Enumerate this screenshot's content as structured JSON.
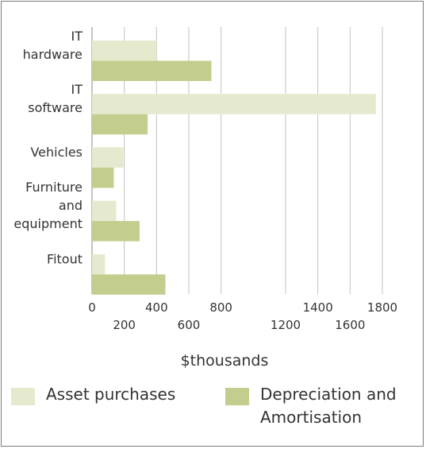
{
  "chart_data": {
    "type": "bar",
    "orientation": "horizontal",
    "categories": [
      [
        "IT",
        "hardware"
      ],
      [
        "IT",
        "software"
      ],
      [
        "Vehicles"
      ],
      [
        "Furniture",
        "and",
        "equipment"
      ],
      [
        "Fitout"
      ]
    ],
    "series": [
      {
        "name": "Asset purchases",
        "color": "#e5eacf",
        "values": [
          400,
          1760,
          195,
          150,
          80
        ]
      },
      {
        "name": "Depreciation and Amortisation",
        "color": "#c3ce8e",
        "values": [
          740,
          345,
          135,
          295,
          455
        ]
      }
    ],
    "xlabel": "$thousands",
    "xlim": [
      0,
      1800
    ],
    "xticks": [
      0,
      200,
      400,
      600,
      800,
      1200,
      1400,
      1600,
      1800
    ],
    "xtick_labels": [
      "0",
      "200",
      "400",
      "600",
      "800",
      "1200",
      "1400",
      "1600",
      "1800"
    ],
    "grid": true,
    "legend": {
      "position": "bottom",
      "items": [
        {
          "label_lines": [
            "Asset purchases"
          ],
          "color": "#e5eacf"
        },
        {
          "label_lines": [
            "Depreciation and",
            "Amortisation"
          ],
          "color": "#c3ce8e"
        }
      ]
    }
  }
}
